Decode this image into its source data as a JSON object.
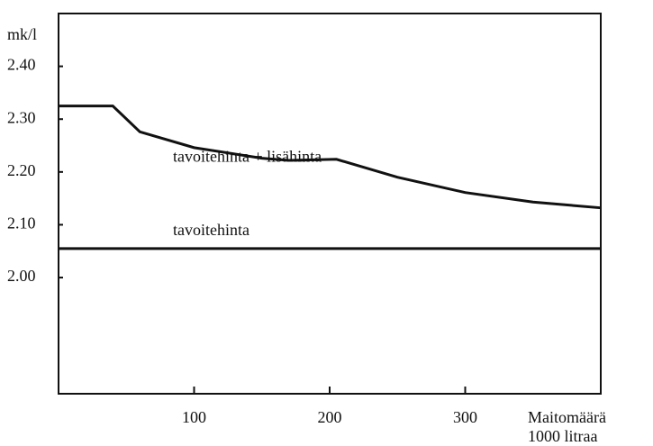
{
  "chart_data": {
    "type": "line",
    "y_label": "mk/l",
    "x_label": [
      "Maitomäärä",
      "1000 litraa"
    ],
    "x": [
      0,
      40,
      60,
      100,
      150,
      170,
      205,
      250,
      300,
      350,
      400
    ],
    "series": [
      {
        "name": "tavoitehinta + lisähinta",
        "color": "#111111",
        "values": [
          2.325,
          2.325,
          2.276,
          2.246,
          2.226,
          2.222,
          2.224,
          2.19,
          2.161,
          2.143,
          2.132
        ]
      },
      {
        "name": "tavoitehinta",
        "color": "#111111",
        "values": [
          2.055,
          2.055,
          2.055,
          2.055,
          2.055,
          2.055,
          2.055,
          2.055,
          2.055,
          2.055,
          2.055
        ]
      }
    ],
    "xlim": [
      0,
      400
    ],
    "ylim": [
      1.78,
      2.5
    ],
    "xticks": [
      100,
      200,
      300
    ],
    "yticks": [
      {
        "value": 2.0,
        "label": "2.00"
      },
      {
        "value": 2.1,
        "label": "2.10"
      },
      {
        "value": 2.2,
        "label": "2.20"
      },
      {
        "value": 2.3,
        "label": "2.30"
      },
      {
        "value": 2.4,
        "label": "2.40"
      }
    ],
    "grid": false
  }
}
